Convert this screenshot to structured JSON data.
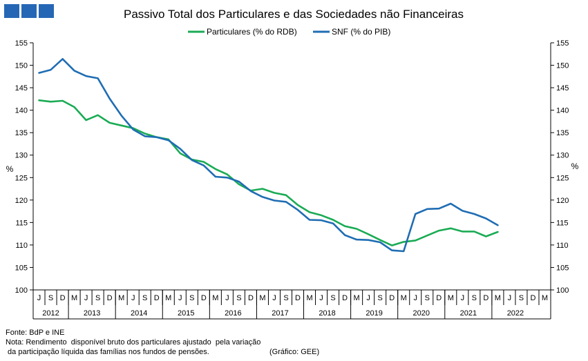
{
  "brand": {
    "color": "#2667b5",
    "blocks": 3
  },
  "chart_data": {
    "type": "line",
    "title": "Passivo Total dos Particulares e das Sociedades não Financeiras",
    "ylabel_left": "%",
    "ylabel_right": "%",
    "ylim": [
      100,
      155
    ],
    "yticks": [
      100,
      105,
      110,
      115,
      120,
      125,
      130,
      135,
      140,
      145,
      150,
      155
    ],
    "legend_position": "top-center",
    "grid": false,
    "quarter_labels": [
      "J",
      "S",
      "D",
      "M",
      "J",
      "S",
      "D",
      "M",
      "J",
      "S",
      "D",
      "M",
      "J",
      "S",
      "D",
      "M",
      "J",
      "S",
      "D",
      "M",
      "J",
      "S",
      "D",
      "M",
      "J",
      "S",
      "D",
      "M",
      "J",
      "S",
      "D",
      "M",
      "J",
      "S",
      "D",
      "M",
      "J",
      "S",
      "D",
      "M",
      "J",
      "S",
      "D",
      "M"
    ],
    "year_labels": [
      "2012",
      "2013",
      "2014",
      "2015",
      "2016",
      "2017",
      "2018",
      "2019",
      "2020",
      "2021",
      "2022"
    ],
    "series": [
      {
        "name": "Particulares (% do RDB)",
        "color": "#1aab54",
        "values": [
          142.2,
          141.9,
          142.1,
          140.7,
          137.8,
          138.9,
          137.2,
          136.6,
          136.0,
          134.8,
          134.0,
          133.5,
          130.4,
          129.0,
          128.5,
          126.9,
          125.7,
          123.5,
          122.1,
          122.5,
          121.6,
          121.1,
          118.9,
          117.3,
          116.6,
          115.6,
          114.2,
          113.6,
          112.4,
          111.1,
          109.9,
          110.7,
          111.0,
          112.1,
          113.2,
          113.7,
          113.0,
          113.0,
          111.9,
          112.9
        ],
        "x_start": 0
      },
      {
        "name": "SNF (% do PIB)",
        "color": "#1f6db3",
        "values": [
          148.3,
          149.0,
          151.4,
          148.8,
          147.6,
          147.1,
          142.6,
          138.8,
          135.7,
          134.2,
          134.0,
          133.3,
          131.4,
          128.9,
          127.7,
          125.2,
          125.0,
          124.1,
          122.0,
          120.7,
          119.9,
          119.6,
          117.8,
          115.6,
          115.5,
          114.8,
          112.2,
          111.2,
          111.1,
          110.6,
          108.8,
          108.6,
          116.9,
          118.0,
          118.1,
          119.2,
          117.6,
          116.9,
          115.9,
          114.4
        ],
        "x_start": 0
      }
    ]
  },
  "footer": {
    "source": "Fonte: BdP e INE",
    "note1": "Nota: Rendimento  disponível bruto dos particulares ajustado  pela variação",
    "note2": " da participação líquida das famílias nos fundos de pensões.",
    "credit": "(Gráfico: GEE)"
  }
}
